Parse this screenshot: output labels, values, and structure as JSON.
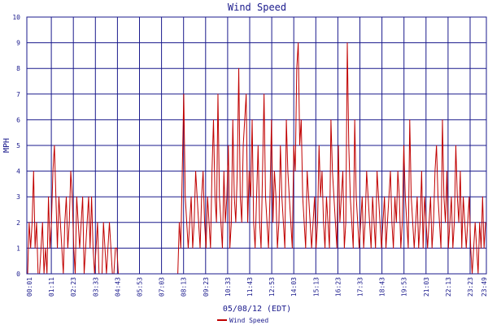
{
  "chart_data": {
    "type": "line",
    "title": "Wind Speed",
    "xlabel": "05/08/12 (EDT)",
    "ylabel": "MPH",
    "ylim": [
      0,
      10
    ],
    "yticks": [
      "0",
      "1",
      "2",
      "3",
      "4",
      "5",
      "6",
      "7",
      "8",
      "9",
      "10"
    ],
    "xticks": [
      "00:01",
      "01:11",
      "02:23",
      "03:33",
      "04:43",
      "05:53",
      "07:03",
      "08:13",
      "09:23",
      "10:33",
      "11:43",
      "12:53",
      "14:03",
      "15:13",
      "16:23",
      "17:33",
      "18:43",
      "19:53",
      "21:03",
      "22:13",
      "23:23",
      "23:49"
    ],
    "grid": true,
    "legend": "bottom-center",
    "series": [
      {
        "name": "Wind Speed",
        "color": "#c00000",
        "x_range": [
          "00:01",
          "23:49"
        ],
        "values": [
          0,
          2,
          1,
          2,
          4,
          1,
          2,
          0,
          0,
          1,
          2,
          0,
          1,
          0,
          3,
          1,
          2,
          4,
          5,
          3,
          1,
          3,
          2,
          1,
          0,
          2,
          3,
          1,
          2,
          4,
          3,
          1,
          0,
          3,
          2,
          1,
          2,
          3,
          0,
          1,
          2,
          3,
          1,
          3,
          1,
          0,
          1,
          2,
          0,
          0,
          0,
          2,
          1,
          0,
          1,
          2,
          1,
          0,
          0,
          1,
          1,
          0,
          0,
          0,
          0,
          0,
          0,
          0,
          0,
          0,
          0,
          0,
          0,
          0,
          0,
          0,
          0,
          0,
          0,
          0,
          0,
          0,
          0,
          0,
          0,
          0,
          0,
          0,
          0,
          0,
          0,
          0,
          0,
          0,
          0,
          0,
          0,
          0,
          0,
          0,
          0,
          0,
          2,
          1,
          4,
          7,
          3,
          2,
          1,
          2,
          3,
          1,
          2,
          4,
          3,
          2,
          1,
          3,
          4,
          2,
          1,
          3,
          2,
          1,
          4,
          6,
          3,
          2,
          7,
          3,
          2,
          1,
          4,
          2,
          3,
          5,
          1,
          2,
          6,
          3,
          2,
          4,
          8,
          3,
          2,
          5,
          6,
          7,
          2,
          4,
          3,
          6,
          2,
          1,
          3,
          5,
          2,
          1,
          4,
          7,
          3,
          2,
          1,
          3,
          6,
          2,
          4,
          3,
          1,
          2,
          5,
          3,
          2,
          1,
          6,
          4,
          3,
          2,
          1,
          5,
          4,
          8,
          9,
          5,
          6,
          3,
          2,
          1,
          4,
          3,
          2,
          1,
          2,
          3,
          1,
          2,
          5,
          3,
          4,
          2,
          1,
          3,
          2,
          1,
          6,
          4,
          3,
          2,
          1,
          5,
          2,
          3,
          4,
          1,
          2,
          9,
          5,
          3,
          2,
          1,
          6,
          3,
          2,
          1,
          2,
          3,
          1,
          2,
          4,
          3,
          2,
          1,
          3,
          2,
          1,
          4,
          3,
          2,
          1,
          2,
          3,
          1,
          2,
          3,
          4,
          2,
          1,
          3,
          2,
          4,
          3,
          1,
          2,
          5,
          3,
          2,
          1,
          6,
          3,
          2,
          1,
          2,
          3,
          1,
          2,
          4,
          1,
          3,
          2,
          1,
          2,
          3,
          1,
          2,
          4,
          5,
          3,
          2,
          1,
          6,
          3,
          2,
          4,
          1,
          2,
          3,
          1,
          2,
          5,
          3,
          2,
          4,
          1,
          3,
          2,
          1,
          2,
          3,
          1,
          0,
          1,
          2,
          1,
          0,
          2,
          1,
          3,
          1,
          2
        ]
      }
    ]
  }
}
